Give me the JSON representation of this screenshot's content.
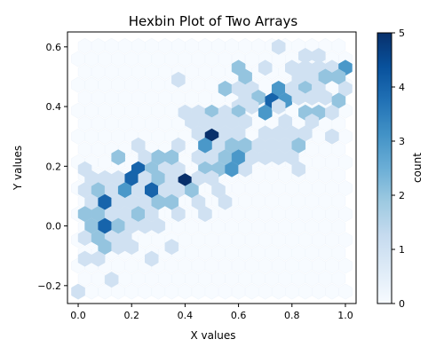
{
  "chart_data": {
    "type": "heatmap",
    "subtype": "hexbin",
    "title": "Hexbin Plot of Two Arrays",
    "xlabel": "X values",
    "ylabel": "Y values",
    "xlim": [
      -0.04,
      1.04
    ],
    "ylim": [
      -0.26,
      0.65
    ],
    "xticks": [
      0.0,
      0.2,
      0.4,
      0.6,
      0.8,
      1.0
    ],
    "xtick_labels": [
      "0.0",
      "0.2",
      "0.4",
      "0.6",
      "0.8",
      "1.0"
    ],
    "yticks": [
      -0.2,
      0.0,
      0.2,
      0.4,
      0.6
    ],
    "ytick_labels": [
      "−0.2",
      "0.0",
      "0.2",
      "0.4",
      "0.6"
    ],
    "colorbar": {
      "label": "count",
      "range": [
        0,
        5
      ],
      "ticks": [
        0,
        1,
        2,
        3,
        4,
        5
      ],
      "tick_labels": [
        "0",
        "1",
        "2",
        "3",
        "4",
        "5"
      ],
      "colormap": "Blues"
    },
    "gridsize_x": 20,
    "hex_extent": {
      "x": [
        0.0,
        1.0
      ],
      "y": [
        -0.22,
        0.62
      ]
    },
    "bins": [
      {
        "x": 0.525,
        "y": 0.62,
        "c": 0
      },
      {
        "x": 0.575,
        "y": 0.62,
        "c": 0
      },
      {
        "x": 0.625,
        "y": 0.62,
        "c": 0
      },
      {
        "x": 0.675,
        "y": 0.62,
        "c": 0
      },
      {
        "x": 0.725,
        "y": 0.62,
        "c": 0
      },
      {
        "x": 0.775,
        "y": 0.62,
        "c": 0
      },
      {
        "x": 0.825,
        "y": 0.62,
        "c": 0
      },
      {
        "x": 0.875,
        "y": 0.62,
        "c": 0
      },
      {
        "x": 0.75,
        "y": 0.6,
        "c": 1
      },
      {
        "x": 0.85,
        "y": 0.57,
        "c": 1
      },
      {
        "x": 0.9,
        "y": 0.57,
        "c": 1
      },
      {
        "x": 0.6,
        "y": 0.53,
        "c": 2
      },
      {
        "x": 0.7,
        "y": 0.53,
        "c": 1
      },
      {
        "x": 0.8,
        "y": 0.53,
        "c": 1
      },
      {
        "x": 0.85,
        "y": 0.53,
        "c": 1
      },
      {
        "x": 0.9,
        "y": 0.53,
        "c": 1
      },
      {
        "x": 0.95,
        "y": 0.53,
        "c": 1
      },
      {
        "x": 1.0,
        "y": 0.53,
        "c": 3
      },
      {
        "x": 0.625,
        "y": 0.5,
        "c": 2
      },
      {
        "x": 0.825,
        "y": 0.5,
        "c": 1
      },
      {
        "x": 0.875,
        "y": 0.5,
        "c": 1
      },
      {
        "x": 0.925,
        "y": 0.5,
        "c": 2
      },
      {
        "x": 0.975,
        "y": 0.5,
        "c": 2
      },
      {
        "x": 0.375,
        "y": 0.49,
        "c": 1
      },
      {
        "x": 0.55,
        "y": 0.46,
        "c": 2
      },
      {
        "x": 0.6,
        "y": 0.46,
        "c": 1
      },
      {
        "x": 0.65,
        "y": 0.46,
        "c": 1
      },
      {
        "x": 0.75,
        "y": 0.46,
        "c": 3
      },
      {
        "x": 0.8,
        "y": 0.46,
        "c": 1
      },
      {
        "x": 0.85,
        "y": 0.46,
        "c": 2
      },
      {
        "x": 0.9,
        "y": 0.46,
        "c": 1
      },
      {
        "x": 1.0,
        "y": 0.46,
        "c": 1
      },
      {
        "x": 0.625,
        "y": 0.43,
        "c": 1
      },
      {
        "x": 0.675,
        "y": 0.43,
        "c": 2
      },
      {
        "x": 0.725,
        "y": 0.42,
        "c": 4
      },
      {
        "x": 0.775,
        "y": 0.42,
        "c": 3
      },
      {
        "x": 0.825,
        "y": 0.43,
        "c": 1
      },
      {
        "x": 0.875,
        "y": 0.43,
        "c": 1
      },
      {
        "x": 0.925,
        "y": 0.43,
        "c": 1
      },
      {
        "x": 0.975,
        "y": 0.42,
        "c": 2
      },
      {
        "x": 0.6,
        "y": 0.4,
        "c": 1
      },
      {
        "x": 0.65,
        "y": 0.4,
        "c": 1
      },
      {
        "x": 0.7,
        "y": 0.38,
        "c": 3
      },
      {
        "x": 0.75,
        "y": 0.4,
        "c": 1
      },
      {
        "x": 0.4,
        "y": 0.38,
        "c": 1
      },
      {
        "x": 0.45,
        "y": 0.38,
        "c": 1
      },
      {
        "x": 0.5,
        "y": 0.38,
        "c": 2
      },
      {
        "x": 0.55,
        "y": 0.38,
        "c": 1
      },
      {
        "x": 0.6,
        "y": 0.38,
        "c": 2
      },
      {
        "x": 0.85,
        "y": 0.38,
        "c": 2
      },
      {
        "x": 0.9,
        "y": 0.38,
        "c": 2
      },
      {
        "x": 0.95,
        "y": 0.38,
        "c": 1
      },
      {
        "x": 0.425,
        "y": 0.35,
        "c": 1
      },
      {
        "x": 0.475,
        "y": 0.35,
        "c": 1
      },
      {
        "x": 0.525,
        "y": 0.35,
        "c": 1
      },
      {
        "x": 0.575,
        "y": 0.35,
        "c": 1
      },
      {
        "x": 0.625,
        "y": 0.35,
        "c": 1
      },
      {
        "x": 0.775,
        "y": 0.35,
        "c": 1
      },
      {
        "x": 0.875,
        "y": 0.35,
        "c": 1
      },
      {
        "x": 0.45,
        "y": 0.31,
        "c": 1
      },
      {
        "x": 0.5,
        "y": 0.31,
        "c": 1
      },
      {
        "x": 0.55,
        "y": 0.31,
        "c": 1
      },
      {
        "x": 0.6,
        "y": 0.31,
        "c": 1
      },
      {
        "x": 0.7,
        "y": 0.31,
        "c": 1
      },
      {
        "x": 0.75,
        "y": 0.31,
        "c": 1
      },
      {
        "x": 0.8,
        "y": 0.31,
        "c": 1
      },
      {
        "x": 0.85,
        "y": 0.31,
        "c": 1
      },
      {
        "x": 0.95,
        "y": 0.3,
        "c": 1
      },
      {
        "x": 0.5,
        "y": 0.3,
        "c": 5
      },
      {
        "x": 0.525,
        "y": 0.27,
        "c": 1
      },
      {
        "x": 0.575,
        "y": 0.27,
        "c": 2
      },
      {
        "x": 0.625,
        "y": 0.27,
        "c": 2
      },
      {
        "x": 0.675,
        "y": 0.27,
        "c": 1
      },
      {
        "x": 0.725,
        "y": 0.27,
        "c": 1
      },
      {
        "x": 0.775,
        "y": 0.27,
        "c": 1
      },
      {
        "x": 0.825,
        "y": 0.27,
        "c": 2
      },
      {
        "x": 0.225,
        "y": 0.27,
        "c": 1
      },
      {
        "x": 0.375,
        "y": 0.27,
        "c": 1
      },
      {
        "x": 0.475,
        "y": 0.27,
        "c": 3
      },
      {
        "x": 0.15,
        "y": 0.23,
        "c": 2
      },
      {
        "x": 0.25,
        "y": 0.23,
        "c": 1
      },
      {
        "x": 0.3,
        "y": 0.23,
        "c": 2
      },
      {
        "x": 0.35,
        "y": 0.23,
        "c": 2
      },
      {
        "x": 0.45,
        "y": 0.23,
        "c": 1
      },
      {
        "x": 0.5,
        "y": 0.23,
        "c": 1
      },
      {
        "x": 0.55,
        "y": 0.23,
        "c": 2
      },
      {
        "x": 0.6,
        "y": 0.23,
        "c": 3
      },
      {
        "x": 0.65,
        "y": 0.23,
        "c": 1
      },
      {
        "x": 0.7,
        "y": 0.23,
        "c": 1
      },
      {
        "x": 0.75,
        "y": 0.23,
        "c": 1
      },
      {
        "x": 0.8,
        "y": 0.23,
        "c": 1
      },
      {
        "x": 0.025,
        "y": 0.19,
        "c": 1
      },
      {
        "x": 0.225,
        "y": 0.19,
        "c": 4
      },
      {
        "x": 0.275,
        "y": 0.19,
        "c": 2
      },
      {
        "x": 0.325,
        "y": 0.19,
        "c": 1
      },
      {
        "x": 0.375,
        "y": 0.19,
        "c": 1
      },
      {
        "x": 0.475,
        "y": 0.19,
        "c": 2
      },
      {
        "x": 0.525,
        "y": 0.19,
        "c": 2
      },
      {
        "x": 0.575,
        "y": 0.19,
        "c": 3
      },
      {
        "x": 0.625,
        "y": 0.19,
        "c": 1
      },
      {
        "x": 0.825,
        "y": 0.19,
        "c": 1
      },
      {
        "x": 0.05,
        "y": 0.16,
        "c": 1
      },
      {
        "x": 0.1,
        "y": 0.16,
        "c": 1
      },
      {
        "x": 0.15,
        "y": 0.16,
        "c": 1
      },
      {
        "x": 0.2,
        "y": 0.16,
        "c": 4
      },
      {
        "x": 0.25,
        "y": 0.16,
        "c": 1
      },
      {
        "x": 0.3,
        "y": 0.16,
        "c": 2
      },
      {
        "x": 0.35,
        "y": 0.16,
        "c": 1
      },
      {
        "x": 0.4,
        "y": 0.15,
        "c": 5
      },
      {
        "x": 0.45,
        "y": 0.16,
        "c": 1
      },
      {
        "x": 0.5,
        "y": 0.16,
        "c": 1
      },
      {
        "x": 0.025,
        "y": 0.12,
        "c": 1
      },
      {
        "x": 0.075,
        "y": 0.12,
        "c": 2
      },
      {
        "x": 0.125,
        "y": 0.12,
        "c": 1
      },
      {
        "x": 0.175,
        "y": 0.12,
        "c": 3
      },
      {
        "x": 0.225,
        "y": 0.12,
        "c": 1
      },
      {
        "x": 0.275,
        "y": 0.12,
        "c": 4
      },
      {
        "x": 0.325,
        "y": 0.12,
        "c": 1
      },
      {
        "x": 0.375,
        "y": 0.12,
        "c": 1
      },
      {
        "x": 0.425,
        "y": 0.12,
        "c": 2
      },
      {
        "x": 0.525,
        "y": 0.12,
        "c": 1
      },
      {
        "x": 0.05,
        "y": 0.08,
        "c": 1
      },
      {
        "x": 0.1,
        "y": 0.08,
        "c": 4
      },
      {
        "x": 0.15,
        "y": 0.08,
        "c": 1
      },
      {
        "x": 0.2,
        "y": 0.08,
        "c": 1
      },
      {
        "x": 0.25,
        "y": 0.08,
        "c": 1
      },
      {
        "x": 0.3,
        "y": 0.08,
        "c": 2
      },
      {
        "x": 0.35,
        "y": 0.08,
        "c": 2
      },
      {
        "x": 0.45,
        "y": 0.08,
        "c": 1
      },
      {
        "x": 0.55,
        "y": 0.08,
        "c": 1
      },
      {
        "x": 0.025,
        "y": 0.04,
        "c": 2
      },
      {
        "x": 0.075,
        "y": 0.04,
        "c": 2
      },
      {
        "x": 0.125,
        "y": 0.04,
        "c": 1
      },
      {
        "x": 0.175,
        "y": 0.04,
        "c": 1
      },
      {
        "x": 0.225,
        "y": 0.04,
        "c": 2
      },
      {
        "x": 0.275,
        "y": 0.04,
        "c": 1
      },
      {
        "x": 0.375,
        "y": 0.04,
        "c": 1
      },
      {
        "x": 0.475,
        "y": 0.04,
        "c": 1
      },
      {
        "x": 0.05,
        "y": 0.0,
        "c": 2
      },
      {
        "x": 0.1,
        "y": 0.0,
        "c": 4
      },
      {
        "x": 0.15,
        "y": 0.0,
        "c": 2
      },
      {
        "x": 0.2,
        "y": 0.0,
        "c": 1
      },
      {
        "x": 0.25,
        "y": 0.0,
        "c": 1
      },
      {
        "x": 0.3,
        "y": 0.0,
        "c": 1
      },
      {
        "x": 0.025,
        "y": -0.04,
        "c": 1
      },
      {
        "x": 0.075,
        "y": -0.04,
        "c": 2
      },
      {
        "x": 0.125,
        "y": -0.04,
        "c": 1
      },
      {
        "x": 0.175,
        "y": -0.04,
        "c": 1
      },
      {
        "x": 0.1,
        "y": -0.07,
        "c": 2
      },
      {
        "x": 0.15,
        "y": -0.07,
        "c": 1
      },
      {
        "x": 0.2,
        "y": -0.07,
        "c": 1
      },
      {
        "x": 0.35,
        "y": -0.07,
        "c": 1
      },
      {
        "x": 0.025,
        "y": -0.11,
        "c": 1
      },
      {
        "x": 0.075,
        "y": -0.11,
        "c": 1
      },
      {
        "x": 0.275,
        "y": -0.11,
        "c": 1
      },
      {
        "x": 0.125,
        "y": -0.18,
        "c": 1
      },
      {
        "x": 0.0,
        "y": -0.22,
        "c": 1
      }
    ]
  }
}
